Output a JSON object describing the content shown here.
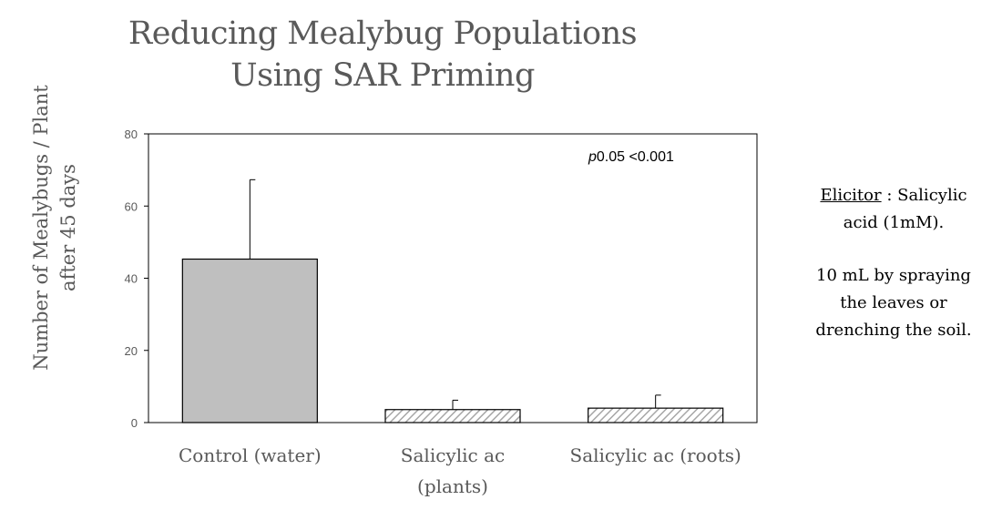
{
  "chart_data": {
    "type": "bar",
    "title_lines": [
      "Reducing Mealybug Populations",
      "Using SAR Priming"
    ],
    "ylabel_lines": [
      "Number of Mealybugs / Plant",
      "after 45 days"
    ],
    "xlabel": "",
    "ylim": [
      0,
      80
    ],
    "yticks": [
      0,
      20,
      40,
      60,
      80
    ],
    "categories": [
      [
        "Control (water)"
      ],
      [
        "Salicylic ac",
        "(plants)"
      ],
      [
        "Salicylic ac (roots)"
      ]
    ],
    "values": [
      45.3,
      3.6,
      4.0
    ],
    "error_upper": [
      22.0,
      2.6,
      3.6
    ],
    "bar_styles": [
      "solid-gray",
      "hatched",
      "hatched"
    ],
    "annotation": {
      "italic": "p",
      "text": "0.05 <0.001"
    },
    "grid": false,
    "legend": "none"
  },
  "side_note": {
    "heading": "Elicitor",
    "heading_rest": " : Salicylic",
    "line2": "acid (1mM).",
    "para2": [
      "10 mL by spraying",
      "the leaves or",
      "drenching the soil."
    ]
  },
  "colors": {
    "bar_fill": "#bfbfbf",
    "hatch": "#a6a6a6",
    "outline": "#000000",
    "text": "#595959"
  }
}
